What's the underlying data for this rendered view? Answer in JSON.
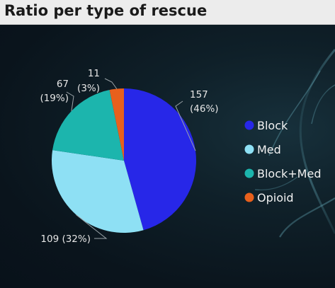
{
  "header": {
    "title": "Ratio per type of rescue"
  },
  "chart_data": {
    "type": "pie",
    "title": "Ratio per type of rescue",
    "categories": [
      "Block",
      "Med",
      "Block+Med",
      "Opioid"
    ],
    "values": [
      157,
      109,
      67,
      11
    ],
    "percent_labels": [
      "(46%)",
      "(32%)",
      "(19%)",
      "(3%)"
    ],
    "colors": [
      "#2727e8",
      "#8ee0f4",
      "#1cb5ad",
      "#e8601c"
    ],
    "legend_position": "right",
    "start_angle_deg": 0,
    "direction": "clockwise"
  },
  "colors": {
    "header_bg": "#ececec",
    "background": "#0b1620"
  }
}
